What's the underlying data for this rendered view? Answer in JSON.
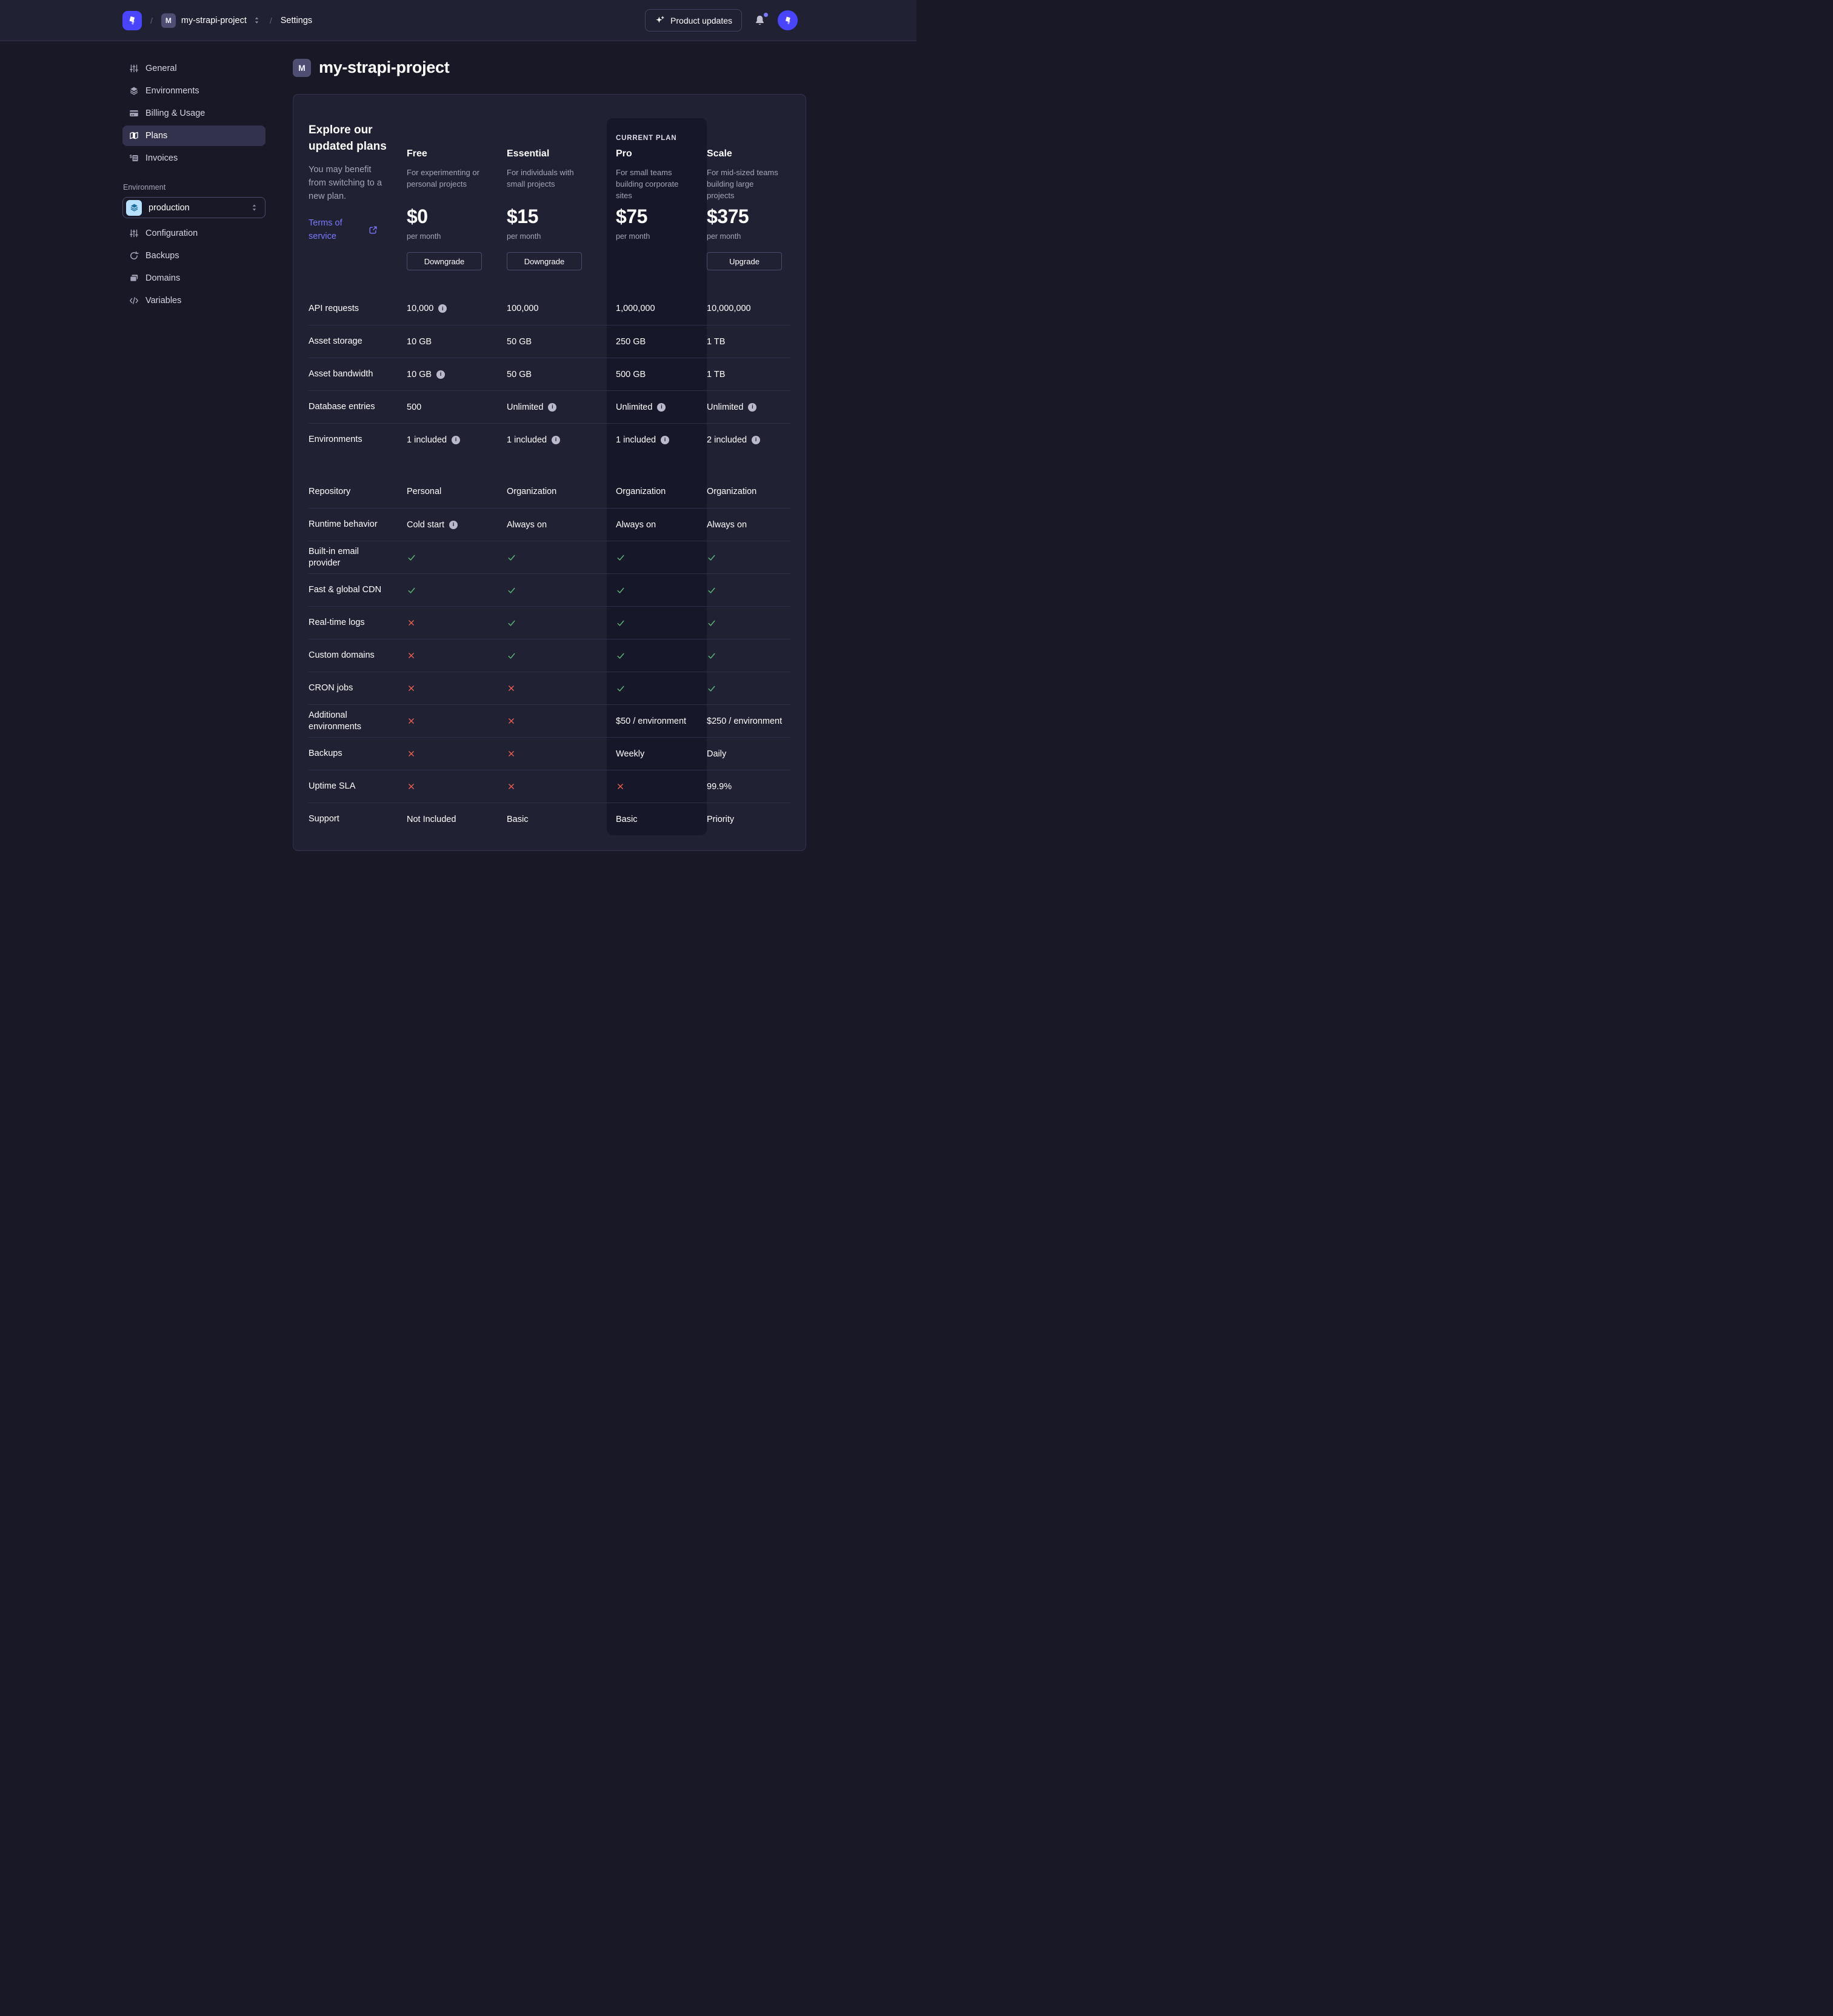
{
  "colors": {
    "accent": "#4945ff",
    "link": "#7b79ff",
    "success": "#5cb176",
    "danger": "#ee5e52",
    "env_icon_bg": "#b8e1ff"
  },
  "navbar": {
    "slash1": "/",
    "slash2": "/",
    "project_badge": "M",
    "project_name": "my-strapi-project",
    "settings": "Settings",
    "product_updates": "Product updates"
  },
  "sidebar": {
    "items": [
      {
        "label": "General"
      },
      {
        "label": "Environments"
      },
      {
        "label": "Billing & Usage"
      },
      {
        "label": "Plans"
      },
      {
        "label": "Invoices"
      }
    ],
    "environment_heading": "Environment",
    "environment_select": "production",
    "environment_items": [
      {
        "label": "Configuration"
      },
      {
        "label": "Backups"
      },
      {
        "label": "Domains"
      },
      {
        "label": "Variables"
      }
    ]
  },
  "main": {
    "project_badge": "M",
    "title": "my-strapi-project"
  },
  "plans": {
    "intro": {
      "title": "Explore our updated plans",
      "body": "You may benefit from switching to a new plan.",
      "link": "Terms of service"
    },
    "current_plan_label": "CURRENT PLAN",
    "columns": [
      {
        "name": "Free",
        "description": "For experimenting or personal projects",
        "price": "$0",
        "period": "per month",
        "action": "Downgrade",
        "current": false
      },
      {
        "name": "Essential",
        "description": "For individuals with small projects",
        "price": "$15",
        "period": "per month",
        "action": "Downgrade",
        "current": false
      },
      {
        "name": "Pro",
        "description": "For small teams building corporate sites",
        "price": "$75",
        "period": "per month",
        "action": null,
        "current": true
      },
      {
        "name": "Scale",
        "description": "For mid-sized teams building large projects",
        "price": "$375",
        "period": "per month",
        "action": "Upgrade",
        "current": false
      }
    ],
    "sections": [
      {
        "rows": [
          {
            "label": "API requests",
            "cells": [
              {
                "text": "10,000",
                "info": true
              },
              {
                "text": "100,000"
              },
              {
                "text": "1,000,000"
              },
              {
                "text": "10,000,000"
              }
            ]
          },
          {
            "label": "Asset storage",
            "cells": [
              {
                "text": "10 GB"
              },
              {
                "text": "50 GB"
              },
              {
                "text": "250 GB"
              },
              {
                "text": "1 TB"
              }
            ]
          },
          {
            "label": "Asset bandwidth",
            "cells": [
              {
                "text": "10 GB",
                "info": true
              },
              {
                "text": "50 GB"
              },
              {
                "text": "500 GB"
              },
              {
                "text": "1 TB"
              }
            ]
          },
          {
            "label": "Database entries",
            "cells": [
              {
                "text": "500"
              },
              {
                "text": "Unlimited",
                "info": true
              },
              {
                "text": "Unlimited",
                "info": true
              },
              {
                "text": "Unlimited",
                "info": true
              }
            ]
          },
          {
            "label": "Environments",
            "cells": [
              {
                "text": "1 included",
                "info": true
              },
              {
                "text": "1 included",
                "info": true
              },
              {
                "text": "1 included",
                "info": true
              },
              {
                "text": "2 included",
                "info": true
              }
            ]
          }
        ]
      },
      {
        "rows": [
          {
            "label": "Repository",
            "cells": [
              {
                "text": "Personal"
              },
              {
                "text": "Organization"
              },
              {
                "text": "Organization"
              },
              {
                "text": "Organization"
              }
            ]
          },
          {
            "label": "Runtime behavior",
            "cells": [
              {
                "text": "Cold start",
                "info": true
              },
              {
                "text": "Always on"
              },
              {
                "text": "Always on"
              },
              {
                "text": "Always on"
              }
            ]
          },
          {
            "label": "Built-in email provider",
            "cells": [
              {
                "icon": "check"
              },
              {
                "icon": "check"
              },
              {
                "icon": "check"
              },
              {
                "icon": "check"
              }
            ]
          },
          {
            "label": "Fast & global CDN",
            "cells": [
              {
                "icon": "check"
              },
              {
                "icon": "check"
              },
              {
                "icon": "check"
              },
              {
                "icon": "check"
              }
            ]
          },
          {
            "label": "Real-time logs",
            "cells": [
              {
                "icon": "cross"
              },
              {
                "icon": "check"
              },
              {
                "icon": "check"
              },
              {
                "icon": "check"
              }
            ]
          },
          {
            "label": "Custom domains",
            "cells": [
              {
                "icon": "cross"
              },
              {
                "icon": "check"
              },
              {
                "icon": "check"
              },
              {
                "icon": "check"
              }
            ]
          },
          {
            "label": "CRON jobs",
            "cells": [
              {
                "icon": "cross"
              },
              {
                "icon": "cross"
              },
              {
                "icon": "check"
              },
              {
                "icon": "check"
              }
            ]
          },
          {
            "label": "Additional environments",
            "cells": [
              {
                "icon": "cross"
              },
              {
                "icon": "cross"
              },
              {
                "text": "$50 / environment"
              },
              {
                "text": "$250 / environment"
              }
            ]
          },
          {
            "label": "Backups",
            "cells": [
              {
                "icon": "cross"
              },
              {
                "icon": "cross"
              },
              {
                "text": "Weekly"
              },
              {
                "text": "Daily"
              }
            ]
          },
          {
            "label": "Uptime SLA",
            "cells": [
              {
                "icon": "cross"
              },
              {
                "icon": "cross"
              },
              {
                "icon": "cross"
              },
              {
                "text": "99.9%"
              }
            ]
          },
          {
            "label": "Support",
            "cells": [
              {
                "text": "Not Included"
              },
              {
                "text": "Basic"
              },
              {
                "text": "Basic"
              },
              {
                "text": "Priority"
              }
            ]
          }
        ]
      }
    ]
  }
}
